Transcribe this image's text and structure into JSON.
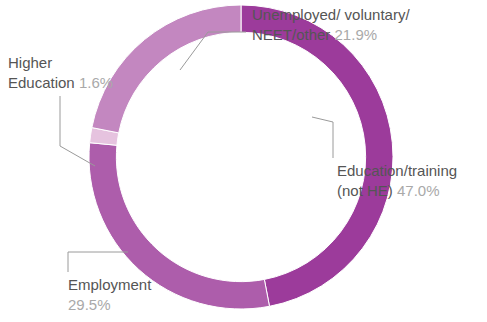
{
  "chart_data": {
    "type": "pie",
    "categories": [
      "Education/training (not HE)",
      "Employment",
      "Higher Education",
      "Unemployed/ voluntary/ NEET/other"
    ],
    "values": [
      47.0,
      29.5,
      1.6,
      21.9
    ],
    "value_labels": [
      "47.0%",
      "29.5%",
      "1.6%",
      "21.9%"
    ],
    "colors": [
      "#9c3b9b",
      "#ad5dab",
      "#e6c3df",
      "#c387c0"
    ],
    "data_labels": true
  }
}
